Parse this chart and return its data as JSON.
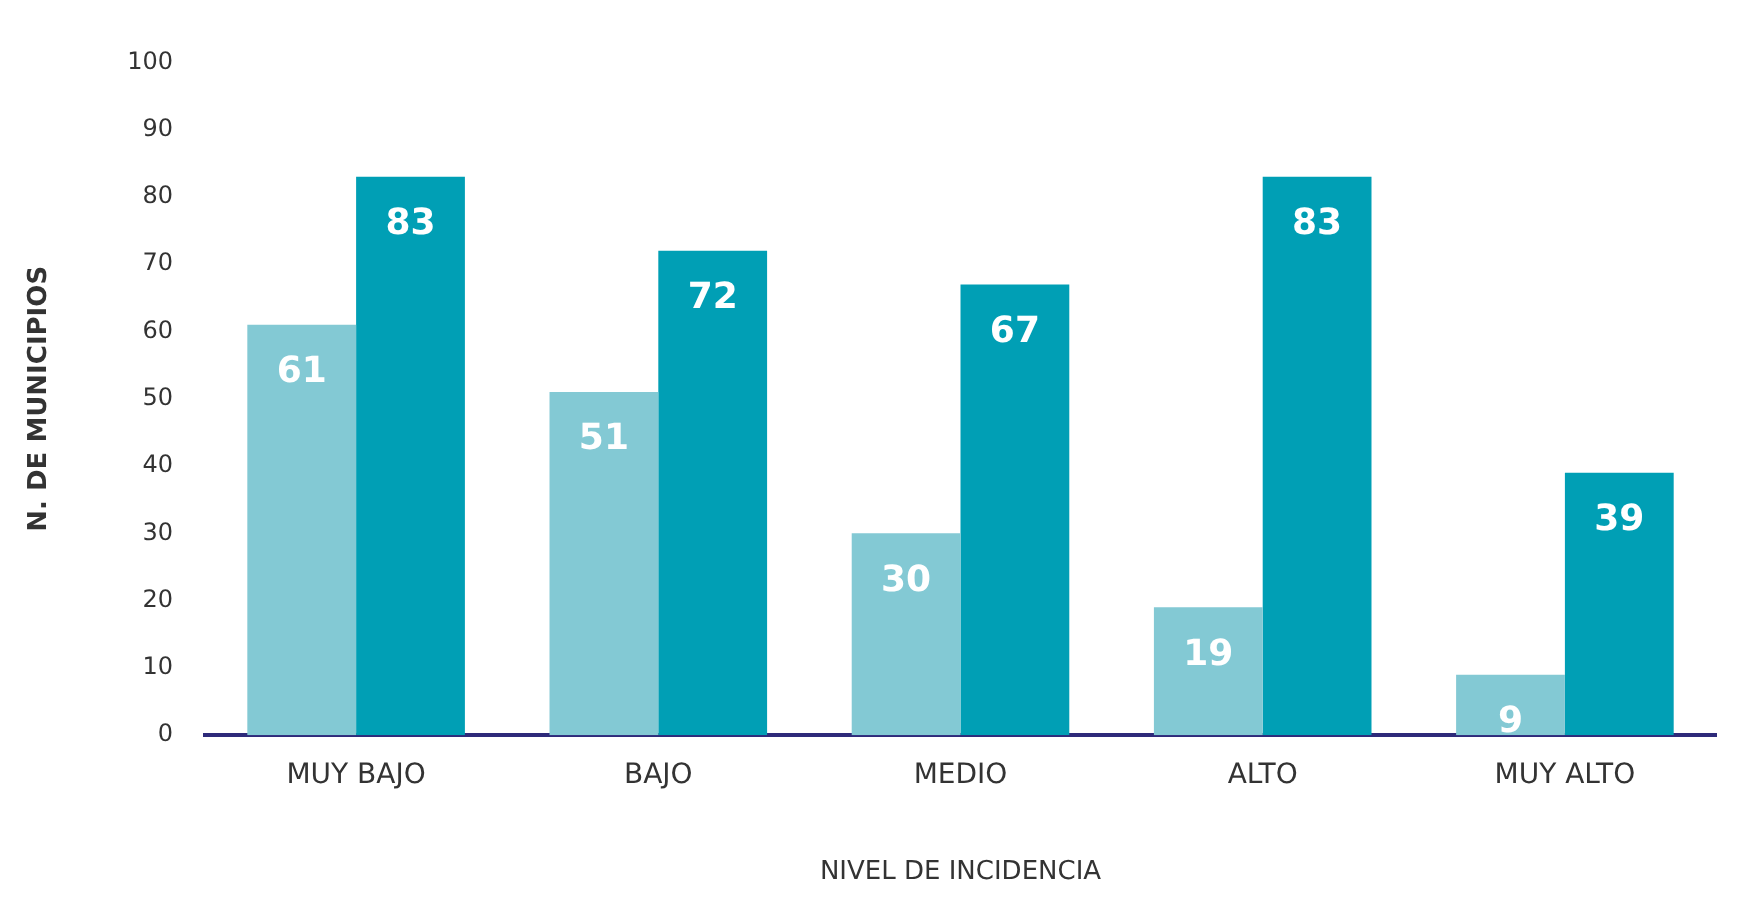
{
  "chart_data": {
    "type": "bar",
    "xlabel": "NIVEL DE INCIDENCIA",
    "ylabel": "N. DE MUNICIPIOS",
    "categories": [
      "MUY BAJO",
      "BAJO",
      "MEDIO",
      "ALTO",
      "MUY ALTO"
    ],
    "series": [
      {
        "color": "#83c9d4",
        "values": [
          61,
          51,
          30,
          19,
          9
        ]
      },
      {
        "color": "#009fb5",
        "values": [
          83,
          72,
          67,
          83,
          39
        ]
      }
    ],
    "ylim": [
      0,
      100
    ],
    "yticks": [
      0,
      10,
      20,
      30,
      40,
      50,
      60,
      70,
      80,
      90,
      100
    ],
    "grid": false,
    "legend": false,
    "data_labels": true
  }
}
